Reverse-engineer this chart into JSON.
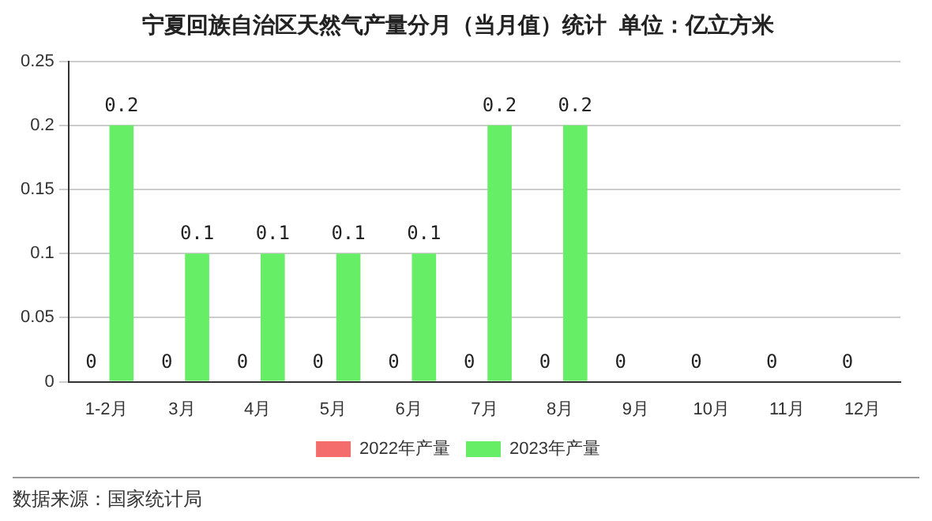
{
  "chart_data": {
    "type": "bar",
    "title": "宁夏回族自治区天然气产量分月（当月值）统计  单位：亿立方米",
    "categories": [
      "1-2月",
      "3月",
      "4月",
      "5月",
      "6月",
      "7月",
      "8月",
      "9月",
      "10月",
      "11月",
      "12月"
    ],
    "series": [
      {
        "name": "2022年产量",
        "color": "#f56c6c",
        "values": [
          0,
          0,
          0,
          0,
          0,
          0,
          0,
          0,
          0,
          0,
          0
        ]
      },
      {
        "name": "2023年产量",
        "color": "#66ee66",
        "values": [
          0.2,
          0.1,
          0.1,
          0.1,
          0.1,
          0.2,
          0.2,
          null,
          null,
          null,
          null
        ]
      }
    ],
    "ylim": [
      0,
      0.25
    ],
    "yticks": [
      0,
      0.05,
      0.1,
      0.15,
      0.2,
      0.25
    ],
    "grid": "y",
    "legend": "bottom",
    "data_labels": true,
    "annotations": [
      "数据来源：国家统计局"
    ]
  }
}
